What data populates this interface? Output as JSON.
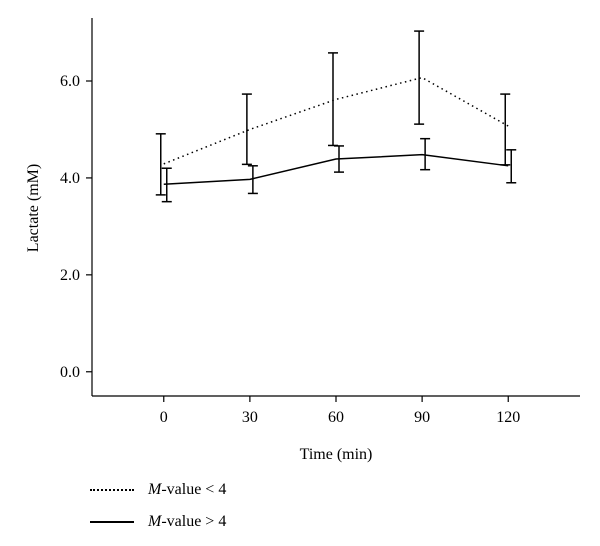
{
  "chart_data": {
    "type": "line",
    "xlabel": "Time (min)",
    "ylabel": "Lactate (mM)",
    "x": [
      0,
      30,
      60,
      90,
      120
    ],
    "x_ticks": [
      "0",
      "30",
      "60",
      "90",
      "120"
    ],
    "y_ticks": [
      "0.0",
      "2.0",
      "4.0",
      "6.0"
    ],
    "y_tick_values": [
      0,
      2,
      4,
      6
    ],
    "ylim": [
      -0.5,
      7.3
    ],
    "xlim": [
      -25,
      145
    ],
    "series": [
      {
        "name_italic": "M",
        "name_rest": "-value < 4",
        "style": "dotted",
        "values": [
          4.29,
          5.0,
          5.62,
          6.07,
          5.07
        ],
        "err_low": [
          3.65,
          4.28,
          4.67,
          5.11,
          4.27
        ],
        "err_high": [
          4.91,
          5.73,
          6.58,
          7.03,
          5.73
        ],
        "x_offset": -3
      },
      {
        "name_italic": "M",
        "name_rest": "-value > 4",
        "style": "solid",
        "values": [
          3.87,
          3.97,
          4.39,
          4.48,
          4.25
        ],
        "err_low": [
          3.51,
          3.68,
          4.12,
          4.17,
          3.9
        ],
        "err_high": [
          4.2,
          4.25,
          4.66,
          4.81,
          4.58
        ],
        "x_offset": 3
      }
    ],
    "grid": false
  }
}
